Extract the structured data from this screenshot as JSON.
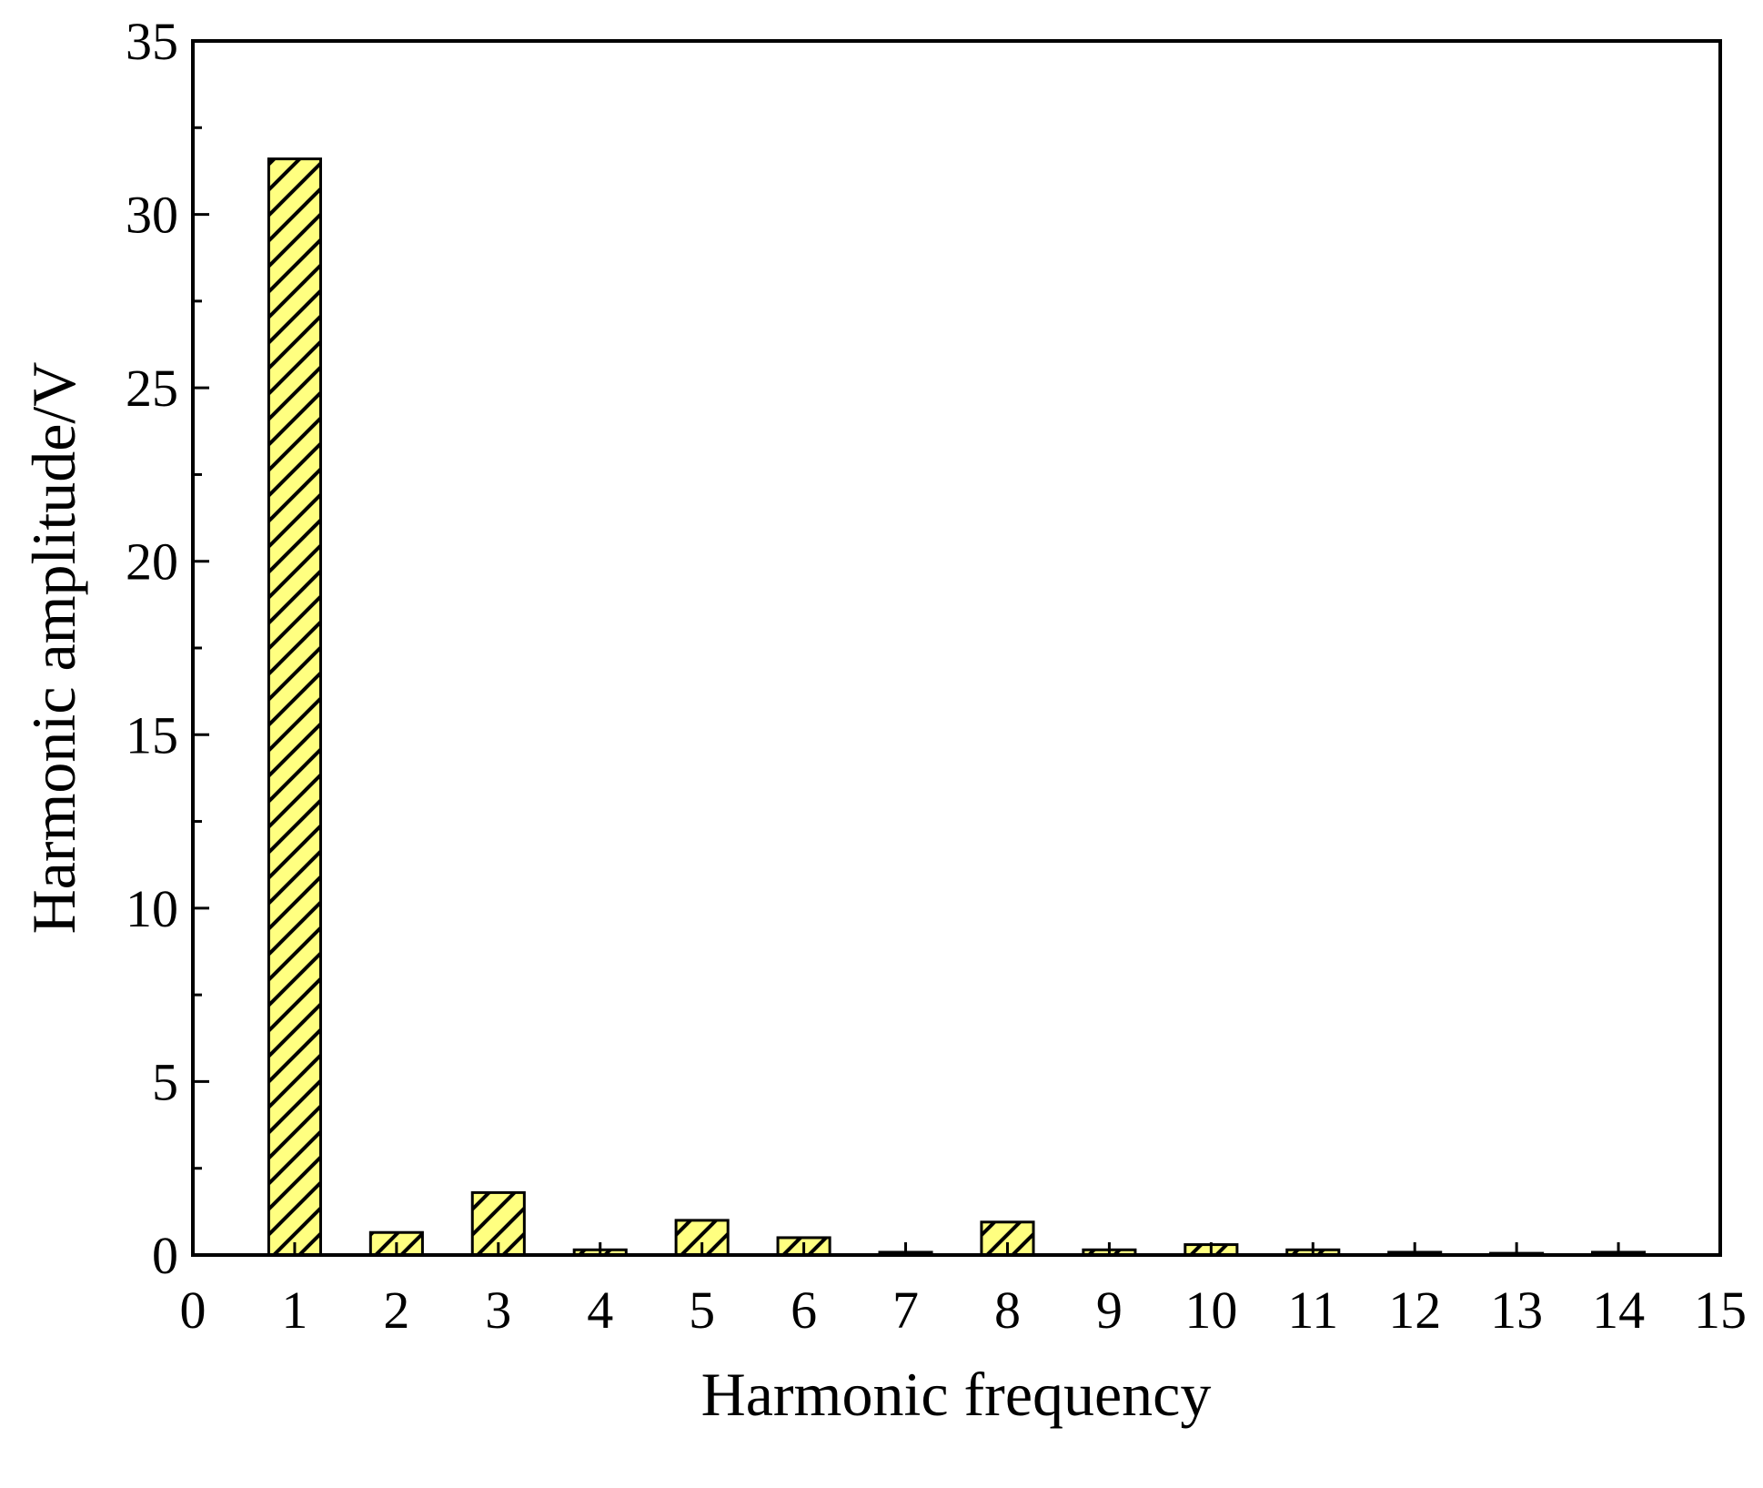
{
  "chart_data": {
    "type": "bar",
    "xlabel": "Harmonic frequency",
    "ylabel": "Harmonic amplitude/V",
    "x": [
      1,
      2,
      3,
      4,
      5,
      6,
      7,
      8,
      9,
      10,
      11,
      12,
      13,
      14
    ],
    "values": [
      31.6,
      0.65,
      1.8,
      0.15,
      1.0,
      0.5,
      0.08,
      0.95,
      0.15,
      0.3,
      0.15,
      0.08,
      0.05,
      0.08
    ],
    "color": "#ffff80",
    "hatch": true,
    "xlim": [
      0,
      15
    ],
    "xticks": [
      0,
      1,
      2,
      3,
      4,
      5,
      6,
      7,
      8,
      9,
      10,
      11,
      12,
      13,
      14,
      15
    ],
    "ylim": [
      0,
      35
    ],
    "yticks": [
      0,
      5,
      10,
      15,
      20,
      25,
      30,
      35
    ],
    "grid": false
  }
}
